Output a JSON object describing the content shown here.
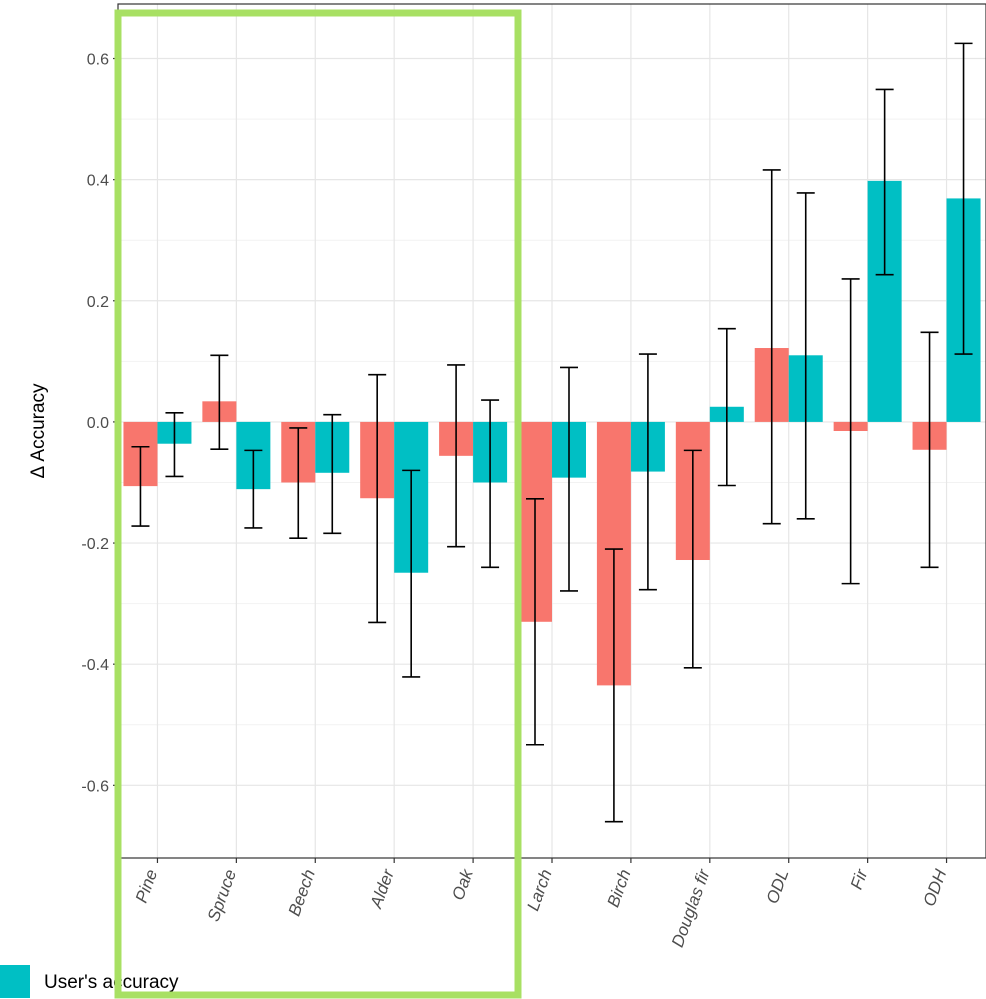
{
  "chart_data": {
    "type": "bar",
    "ylabel": "Δ Accuracy",
    "xlabel": "",
    "ylim": [
      -0.72,
      0.69
    ],
    "yticks": [
      -0.6,
      -0.4,
      -0.2,
      0.0,
      0.2,
      0.4,
      0.6
    ],
    "ytick_labels": [
      "-0.6",
      "-0.4",
      "-0.2",
      "0.0",
      "0.2",
      "0.4",
      "0.6"
    ],
    "grid": true,
    "categories": [
      "Pine",
      "Spruce",
      "Beech",
      "Alder",
      "Oak",
      "Larch",
      "Birch",
      "Douglas fir",
      "ODL",
      "Fir",
      "ODH"
    ],
    "series": [
      {
        "color": "#F8766D",
        "values": [
          -0.106,
          0.034,
          -0.1,
          -0.126,
          -0.056,
          -0.33,
          -0.435,
          -0.228,
          0.122,
          -0.015,
          -0.046
        ],
        "err_low": [
          -0.172,
          -0.045,
          -0.192,
          -0.331,
          -0.206,
          -0.533,
          -0.66,
          -0.406,
          -0.168,
          -0.267,
          -0.24
        ],
        "err_high": [
          -0.041,
          0.11,
          -0.01,
          0.078,
          0.094,
          -0.127,
          -0.21,
          -0.047,
          0.416,
          0.236,
          0.148
        ]
      },
      {
        "name": "User's accuracy",
        "color": "#00BFC4",
        "values": [
          -0.036,
          -0.111,
          -0.084,
          -0.249,
          -0.1,
          -0.092,
          -0.082,
          0.025,
          0.11,
          0.398,
          0.369
        ],
        "err_low": [
          -0.09,
          -0.175,
          -0.184,
          -0.421,
          -0.24,
          -0.279,
          -0.277,
          -0.105,
          -0.16,
          0.243,
          0.112
        ],
        "err_high": [
          0.015,
          -0.047,
          0.012,
          -0.08,
          0.036,
          0.09,
          0.112,
          0.154,
          0.378,
          0.549,
          0.625
        ]
      }
    ],
    "legend": {
      "placement": "bottom-left",
      "label": "User's accuracy"
    },
    "annotation_box": {
      "color": "#A8E063",
      "covers_categories": [
        "Pine",
        "Spruce",
        "Beech",
        "Alder",
        "Oak"
      ]
    }
  }
}
